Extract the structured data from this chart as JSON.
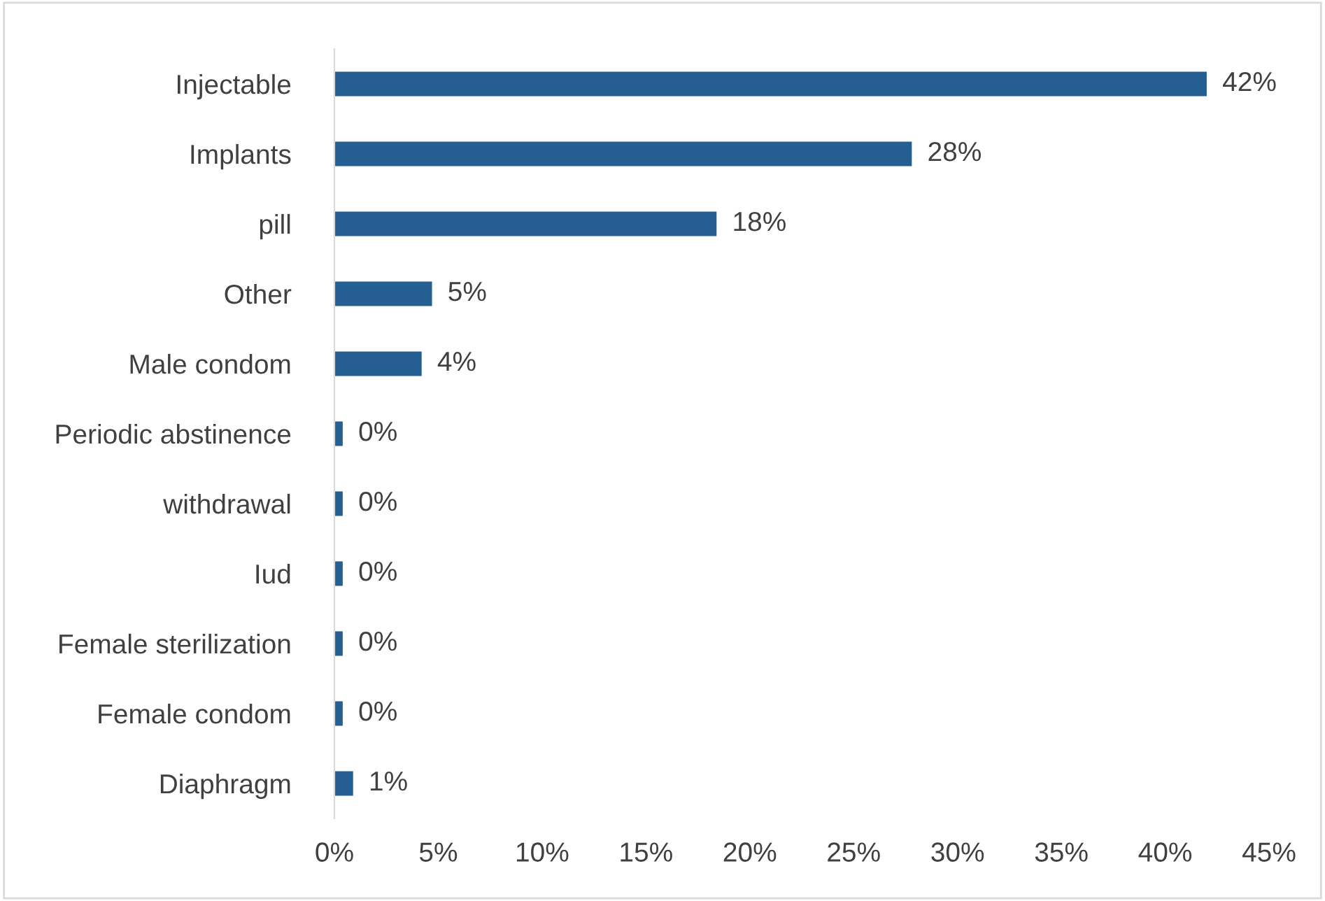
{
  "chart_data": {
    "type": "bar",
    "orientation": "horizontal",
    "categories": [
      "Injectable",
      "Implants",
      "pill",
      "Other",
      "Male condom",
      "Periodic abstinence",
      "withdrawal",
      "Iud",
      "Female sterilization",
      "Female condom",
      "Diaphragm"
    ],
    "values": [
      42.0,
      27.8,
      18.4,
      4.7,
      4.2,
      0.4,
      0.4,
      0.4,
      0.4,
      0.4,
      0.9
    ],
    "value_labels": [
      "42%",
      "28%",
      "18%",
      "5%",
      "4%",
      "0%",
      "0%",
      "0%",
      "0%",
      "0%",
      "1%"
    ],
    "color": "#255e91",
    "xlim": [
      0,
      45
    ],
    "xticks": [
      {
        "value": 0,
        "label": "0%"
      },
      {
        "value": 5,
        "label": "5%"
      },
      {
        "value": 10,
        "label": "10%"
      },
      {
        "value": 15,
        "label": "15%"
      },
      {
        "value": 20,
        "label": "20%"
      },
      {
        "value": 25,
        "label": "25%"
      },
      {
        "value": 30,
        "label": "30%"
      },
      {
        "value": 35,
        "label": "35%"
      },
      {
        "value": 40,
        "label": "40%"
      },
      {
        "value": 45,
        "label": "45%"
      }
    ],
    "grid": false
  }
}
